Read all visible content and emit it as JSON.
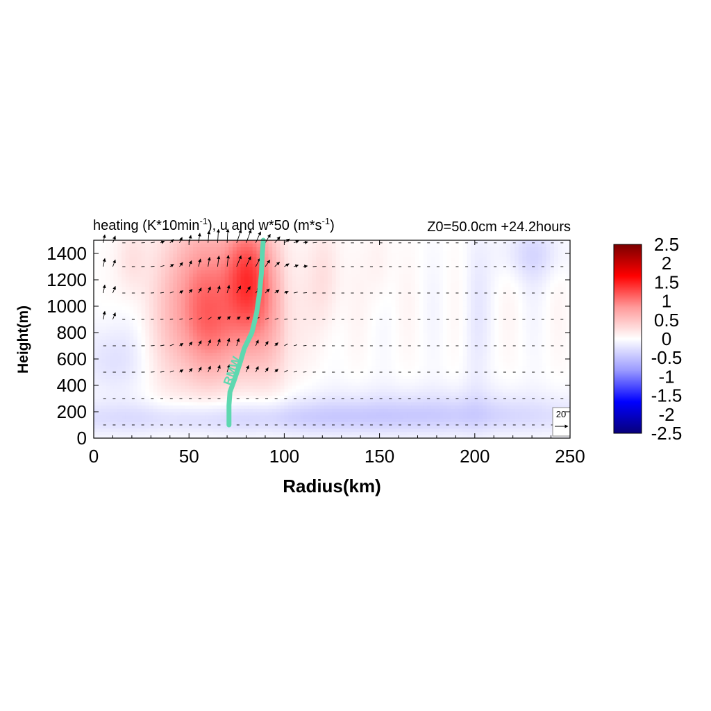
{
  "chart_data": {
    "type": "heatmap",
    "title_left_main": "heating (K*10min",
    "title_left_sup1": "-1",
    "title_left_mid": "), u and w*50 (m*s",
    "title_left_sup2": "-1",
    "title_left_end": ")",
    "title_right": "Z0=50.0cm  +24.2hours",
    "xlabel": "Radius(km)",
    "ylabel": "Height(m)",
    "xlim": [
      0,
      250
    ],
    "ylim": [
      0,
      1500
    ],
    "xticks": [
      "0",
      "50",
      "100",
      "150",
      "200",
      "250"
    ],
    "xtick_values": [
      0,
      50,
      100,
      150,
      200,
      250
    ],
    "yticks": [
      "0",
      "200",
      "400",
      "600",
      "800",
      "1000",
      "1200",
      "1400"
    ],
    "ytick_values": [
      0,
      200,
      400,
      600,
      800,
      1000,
      1200,
      1400
    ],
    "colorbar": {
      "range": [
        -2.5,
        2.5
      ],
      "tick_labels": [
        "2.5",
        "2",
        "1.5",
        "1",
        "0.5",
        "0",
        "-0.5",
        "-1",
        "-1.5",
        "-2",
        "-2.5"
      ],
      "tick_values": [
        2.5,
        2,
        1.5,
        1,
        0.5,
        0,
        -0.5,
        -1,
        -1.5,
        -2,
        -2.5
      ],
      "colors": [
        "#08007a",
        "#0000ff",
        "#9a9aff",
        "#ffffff",
        "#ff9a9a",
        "#ff0000",
        "#7a0000"
      ]
    },
    "heating_blobs": [
      {
        "r": 56,
        "z": 1100,
        "sr": 12,
        "sz": 420,
        "amp": 0.9
      },
      {
        "r": 80,
        "z": 1250,
        "sr": 9,
        "sz": 320,
        "amp": 1.1
      },
      {
        "r": 93,
        "z": 950,
        "sr": 9,
        "sz": 420,
        "amp": 0.5
      },
      {
        "r": 68,
        "z": 750,
        "sr": 14,
        "sz": 280,
        "amp": 0.45
      },
      {
        "r": 38,
        "z": 900,
        "sr": 8,
        "sz": 450,
        "amp": 0.22
      },
      {
        "r": 122,
        "z": 1200,
        "sr": 6,
        "sz": 300,
        "amp": 0.3
      },
      {
        "r": 20,
        "z": 1350,
        "sr": 6,
        "sz": 200,
        "amp": 0.25
      },
      {
        "r": 150,
        "z": 1300,
        "sr": 5,
        "sz": 250,
        "amp": 0.15
      },
      {
        "r": 100,
        "z": 150,
        "sr": 120,
        "sz": 90,
        "amp": -0.35
      },
      {
        "r": 175,
        "z": 250,
        "sr": 60,
        "sz": 120,
        "amp": -0.2
      },
      {
        "r": 10,
        "z": 600,
        "sr": 12,
        "sz": 200,
        "amp": -0.25
      },
      {
        "r": 230,
        "z": 1400,
        "sr": 12,
        "sz": 150,
        "amp": -0.3
      },
      {
        "r": 200,
        "z": 900,
        "sr": 5,
        "sz": 500,
        "amp": -0.15
      }
    ],
    "vector_levels": [
      100,
      300,
      500,
      700,
      900,
      1100,
      1300,
      1480
    ],
    "vector_r_start": 5,
    "vector_r_step": 5,
    "rmw": {
      "label": "RMW",
      "color": "#5ed8b0",
      "points": [
        [
          71,
          100
        ],
        [
          71,
          250
        ],
        [
          71.5,
          350
        ],
        [
          74,
          450
        ],
        [
          77,
          580
        ],
        [
          79,
          680
        ],
        [
          83,
          800
        ],
        [
          85.5,
          950
        ],
        [
          87,
          1100
        ],
        [
          88,
          1250
        ],
        [
          88.5,
          1400
        ],
        [
          89,
          1500
        ]
      ]
    },
    "reference_vector": {
      "label": "20"
    }
  }
}
